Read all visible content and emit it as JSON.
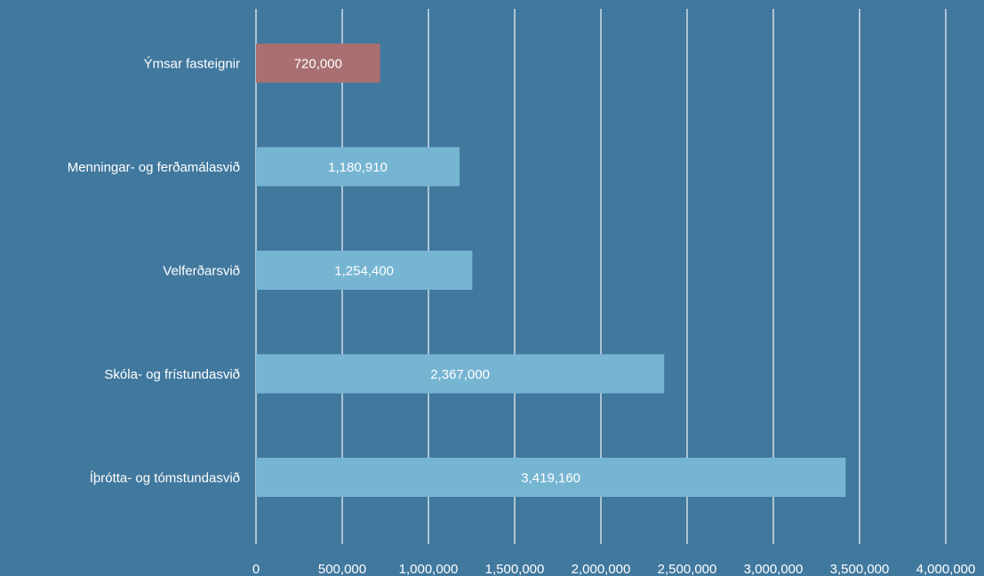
{
  "chart_data": {
    "type": "bar",
    "orientation": "horizontal",
    "title": "",
    "xlabel": "",
    "ylabel": "",
    "categories": [
      "Ýmsar fasteignir",
      "Menningar- og ferðamálasvið",
      "Velferðarsvið",
      "Skóla- og frístundasvið",
      "Íþrótta- og tómstundasvið"
    ],
    "values": [
      720000,
      1180910,
      1254400,
      2367000,
      3419160
    ],
    "data_labels": [
      "720,000",
      "1,180,910",
      "1,254,400",
      "2,367,000",
      "3,419,160"
    ],
    "xlim": [
      0,
      4000000
    ],
    "ticks": [
      0,
      500000,
      1000000,
      1500000,
      2000000,
      2500000,
      3000000,
      3500000,
      4000000
    ],
    "tick_labels": [
      "0",
      "500,000",
      "1,000,000",
      "1,500,000",
      "2,000,000",
      "2,500,000",
      "3,000,000",
      "3,500,000",
      "4,000,000"
    ],
    "grid": true,
    "legend": "none",
    "colors": {
      "background": "#41789e",
      "bar_default": "#76b5d2",
      "bar_highlight": "#a87070",
      "gridline": "#e8eef3",
      "text": "#ffffff"
    },
    "highlight_index": 0
  }
}
